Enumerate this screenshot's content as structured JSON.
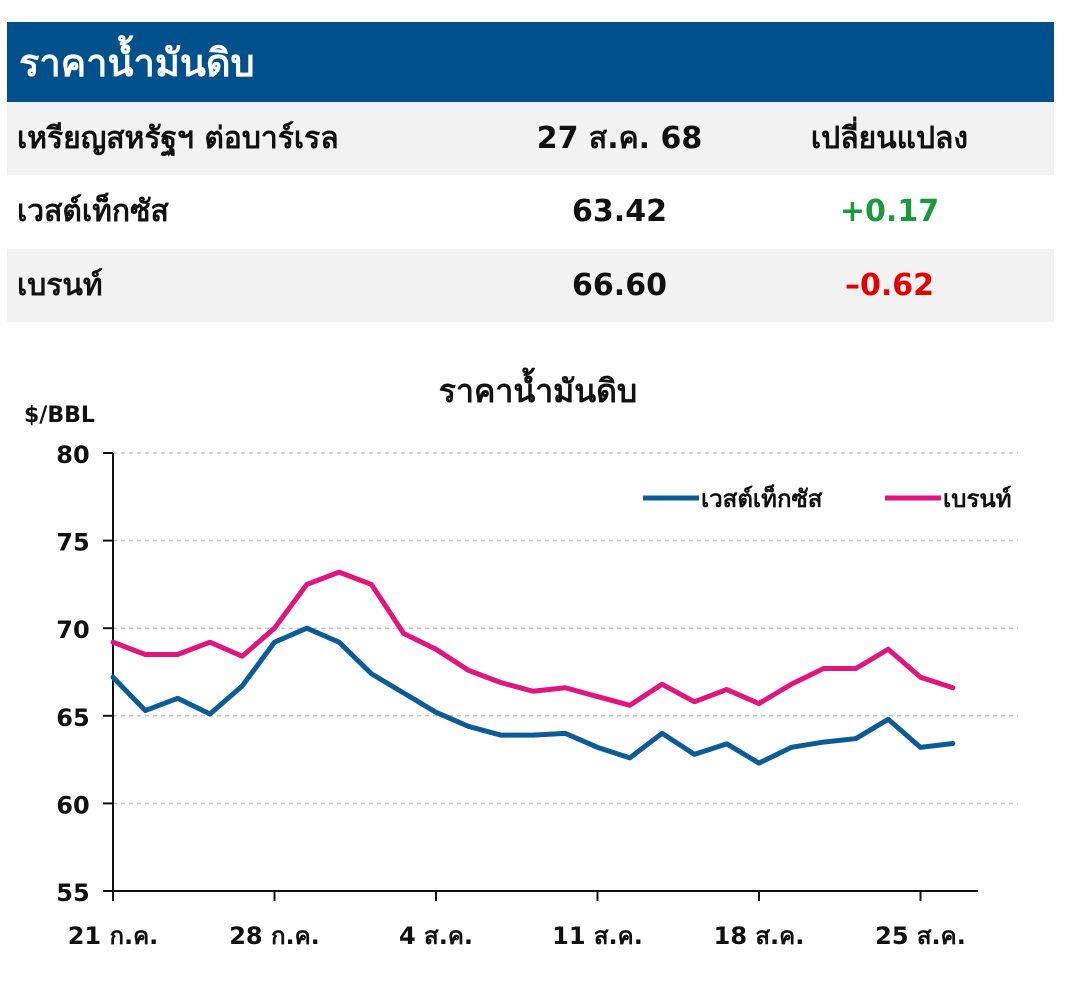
{
  "header": {
    "title": "ราคาน้ำมันดิบ"
  },
  "table": {
    "columns": [
      "เหรียญสหรัฐฯ ต่อบาร์เรล",
      "27 ส.ค. 68",
      "เปลี่ยนแปลง"
    ],
    "rows": [
      {
        "name": "เวสต์เท็กซัส",
        "price": "63.42",
        "change": "+0.17"
      },
      {
        "name": "เบรนท์",
        "price": "66.60",
        "change": "–0.62"
      }
    ]
  },
  "colors": {
    "header_bg": "#00508c",
    "wti": "#0b5c96",
    "brent": "#e0157f",
    "up": "#1a9a3c",
    "down": "#e30000"
  },
  "chart_data": {
    "type": "line",
    "title": "ราคาน้ำมันดิบ",
    "ylabel": "$/BBL",
    "ylim": [
      55,
      80
    ],
    "yticks": [
      55,
      60,
      65,
      70,
      75,
      80
    ],
    "grid": "horizontal dashed",
    "legend": "top-right",
    "xtick_labels": [
      "21 ก.ค.",
      "28 ก.ค.",
      "4 ส.ค.",
      "11 ส.ค.",
      "18 ส.ค.",
      "25 ส.ค."
    ],
    "xtick_index": [
      0,
      5,
      10,
      15,
      20,
      25
    ],
    "series": [
      {
        "name": "เวสต์เท็กซัส",
        "color": "#0b5c96",
        "x": [
          0,
          1,
          2,
          3,
          4,
          5,
          6,
          7,
          8,
          9,
          10,
          11,
          12,
          13,
          14,
          15,
          16,
          17,
          18,
          19,
          20,
          21,
          22,
          23,
          24,
          25,
          26
        ],
        "values": [
          67.2,
          65.3,
          66.0,
          65.1,
          66.7,
          69.2,
          70.0,
          69.2,
          67.4,
          66.3,
          65.2,
          64.4,
          63.9,
          63.9,
          64.0,
          63.2,
          62.6,
          64.0,
          62.8,
          63.4,
          62.3,
          63.2,
          63.5,
          63.7,
          64.8,
          63.2,
          63.42
        ]
      },
      {
        "name": "เบรนท์",
        "color": "#e0157f",
        "x": [
          0,
          1,
          2,
          3,
          4,
          5,
          6,
          7,
          8,
          9,
          10,
          11,
          12,
          13,
          14,
          15,
          16,
          17,
          18,
          19,
          20,
          21,
          22,
          23,
          24,
          25,
          26
        ],
        "values": [
          69.2,
          68.5,
          68.5,
          69.2,
          68.4,
          70.0,
          72.5,
          73.2,
          72.5,
          69.7,
          68.8,
          67.6,
          66.9,
          66.4,
          66.6,
          66.1,
          65.6,
          66.8,
          65.8,
          66.5,
          65.7,
          66.8,
          67.7,
          67.7,
          68.8,
          67.2,
          66.6
        ]
      }
    ],
    "series_x": [
      0,
      1,
      2,
      3,
      4,
      5,
      6,
      7,
      8,
      9,
      10,
      11,
      12,
      13,
      14,
      15,
      16,
      17,
      18,
      19,
      20,
      21,
      22,
      23,
      24,
      25,
      26
    ]
  }
}
